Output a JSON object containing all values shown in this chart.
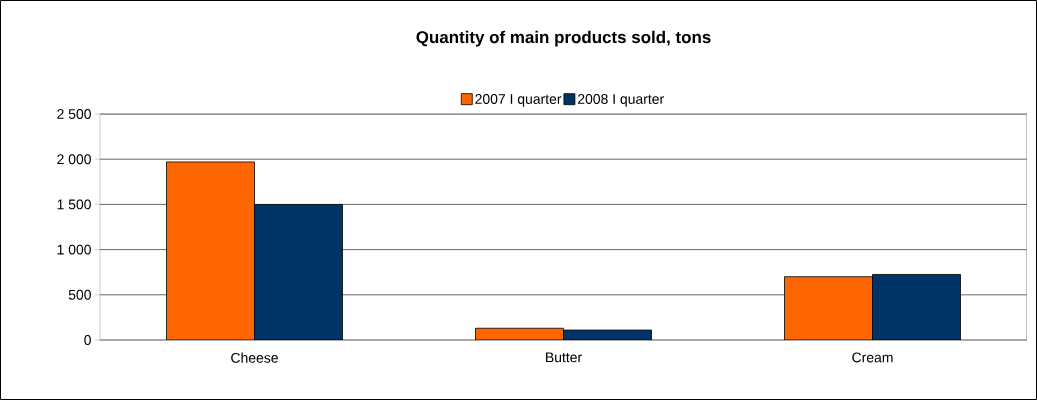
{
  "chart_data": {
    "type": "bar",
    "title": "Quantity of main products sold, tons",
    "categories": [
      "Cheese",
      "Butter",
      "Cream"
    ],
    "series": [
      {
        "name": "2007  I quarter",
        "color": "#ff6600",
        "values": [
          1970,
          130,
          700
        ]
      },
      {
        "name": "2008 I quarter",
        "color": "#003366",
        "values": [
          1500,
          110,
          725
        ]
      }
    ],
    "ylim": [
      0,
      2500
    ],
    "yticks": [
      {
        "value": 0,
        "label": "0"
      },
      {
        "value": 500,
        "label": "500"
      },
      {
        "value": 1000,
        "label": "1 000"
      },
      {
        "value": 1500,
        "label": "1 500"
      },
      {
        "value": 2000,
        "label": "2 000"
      },
      {
        "value": 2500,
        "label": "2 500"
      }
    ],
    "grid": "y",
    "legend": "top"
  }
}
